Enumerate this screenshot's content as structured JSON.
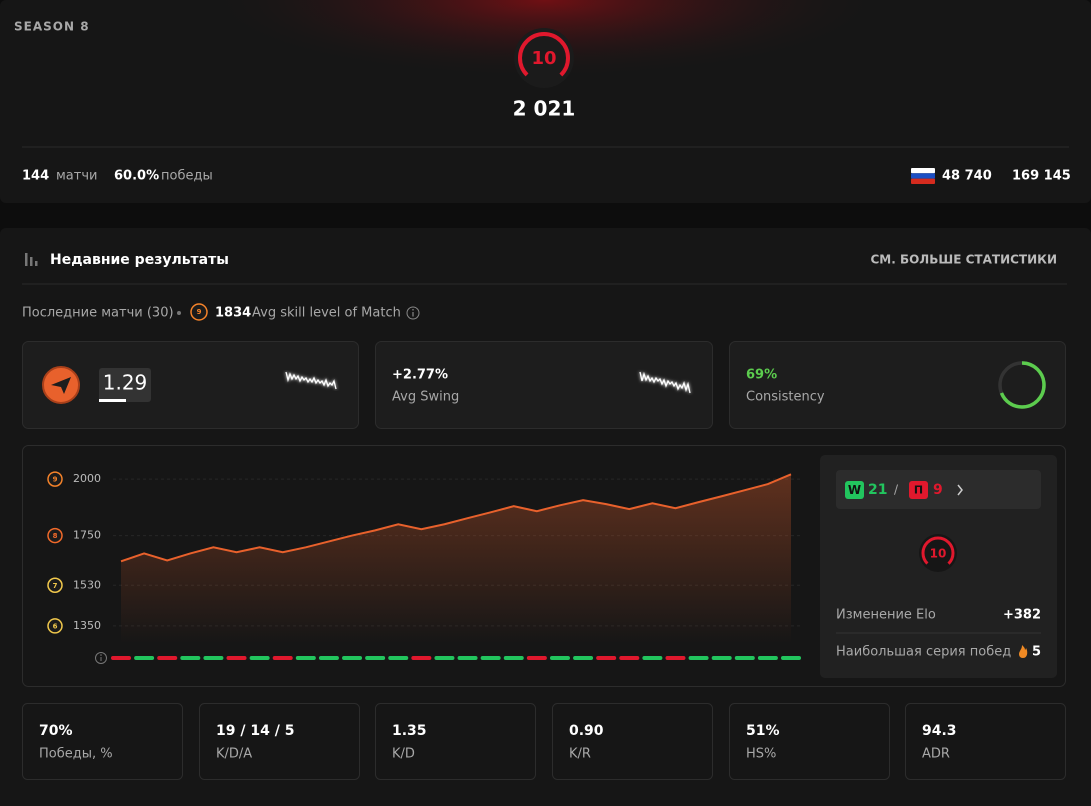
{
  "header": {
    "season": "SEASON 8",
    "level": "10",
    "elo": "2 021",
    "matches": "144",
    "matches_label": "матчи",
    "winrate": "60.0%",
    "winrate_label": "победы",
    "region_rank": "48 740",
    "world_rank": "169 145"
  },
  "recent": {
    "title": "Недавние результаты",
    "more_link": "СМ. БОЛЬШЕ СТАТИСТИКИ",
    "last_matches": "Последние матчи (30)",
    "avg_skill_badge": "9",
    "avg_elo": "1834",
    "avg_elo_label": "Avg skill level of Match"
  },
  "cards": {
    "rating": "1.29",
    "swing": "+2.77%",
    "swing_label": "Avg Swing",
    "consistency": {
      "value": 69,
      "value_label": "69%",
      "label": "Consistency"
    }
  },
  "chart_data": {
    "type": "line",
    "values": [
      1636,
      1671,
      1640,
      1671,
      1698,
      1676,
      1698,
      1676,
      1698,
      1724,
      1750,
      1773,
      1800,
      1778,
      1800,
      1827,
      1853,
      1880,
      1858,
      1884,
      1907,
      1889,
      1867,
      1893,
      1871,
      1898,
      1924,
      1951,
      1978,
      2021
    ],
    "ylim": [
      1270,
      2100
    ],
    "yticks": [
      2000,
      1750,
      1530,
      1350
    ],
    "tick_levels": [
      9,
      8,
      7,
      6
    ],
    "grid": true,
    "color": "#e8612c",
    "outcomes": [
      0,
      1,
      0,
      1,
      1,
      0,
      1,
      0,
      1,
      1,
      1,
      1,
      1,
      0,
      1,
      1,
      1,
      1,
      0,
      1,
      1,
      0,
      0,
      1,
      0,
      1,
      1,
      1,
      1,
      1
    ],
    "win_color": "#22c55e",
    "loss_color": "#e0182d"
  },
  "side": {
    "wins_badge": "W",
    "wins": "21",
    "separator": "/",
    "losses_badge": "П",
    "losses": "9",
    "level": "10",
    "elo_change_label": "Изменение Elo",
    "elo_change": "+382",
    "streak_label": "Наибольшая серия побед",
    "streak": "5"
  },
  "stats": [
    {
      "value": "70%",
      "label": "Победы, %"
    },
    {
      "value": "19 / 14 / 5",
      "label": "K/D/A"
    },
    {
      "value": "1.35",
      "label": "K/D"
    },
    {
      "value": "0.90",
      "label": "K/R"
    },
    {
      "value": "51%",
      "label": "HS%"
    },
    {
      "value": "94.3",
      "label": "ADR"
    }
  ]
}
